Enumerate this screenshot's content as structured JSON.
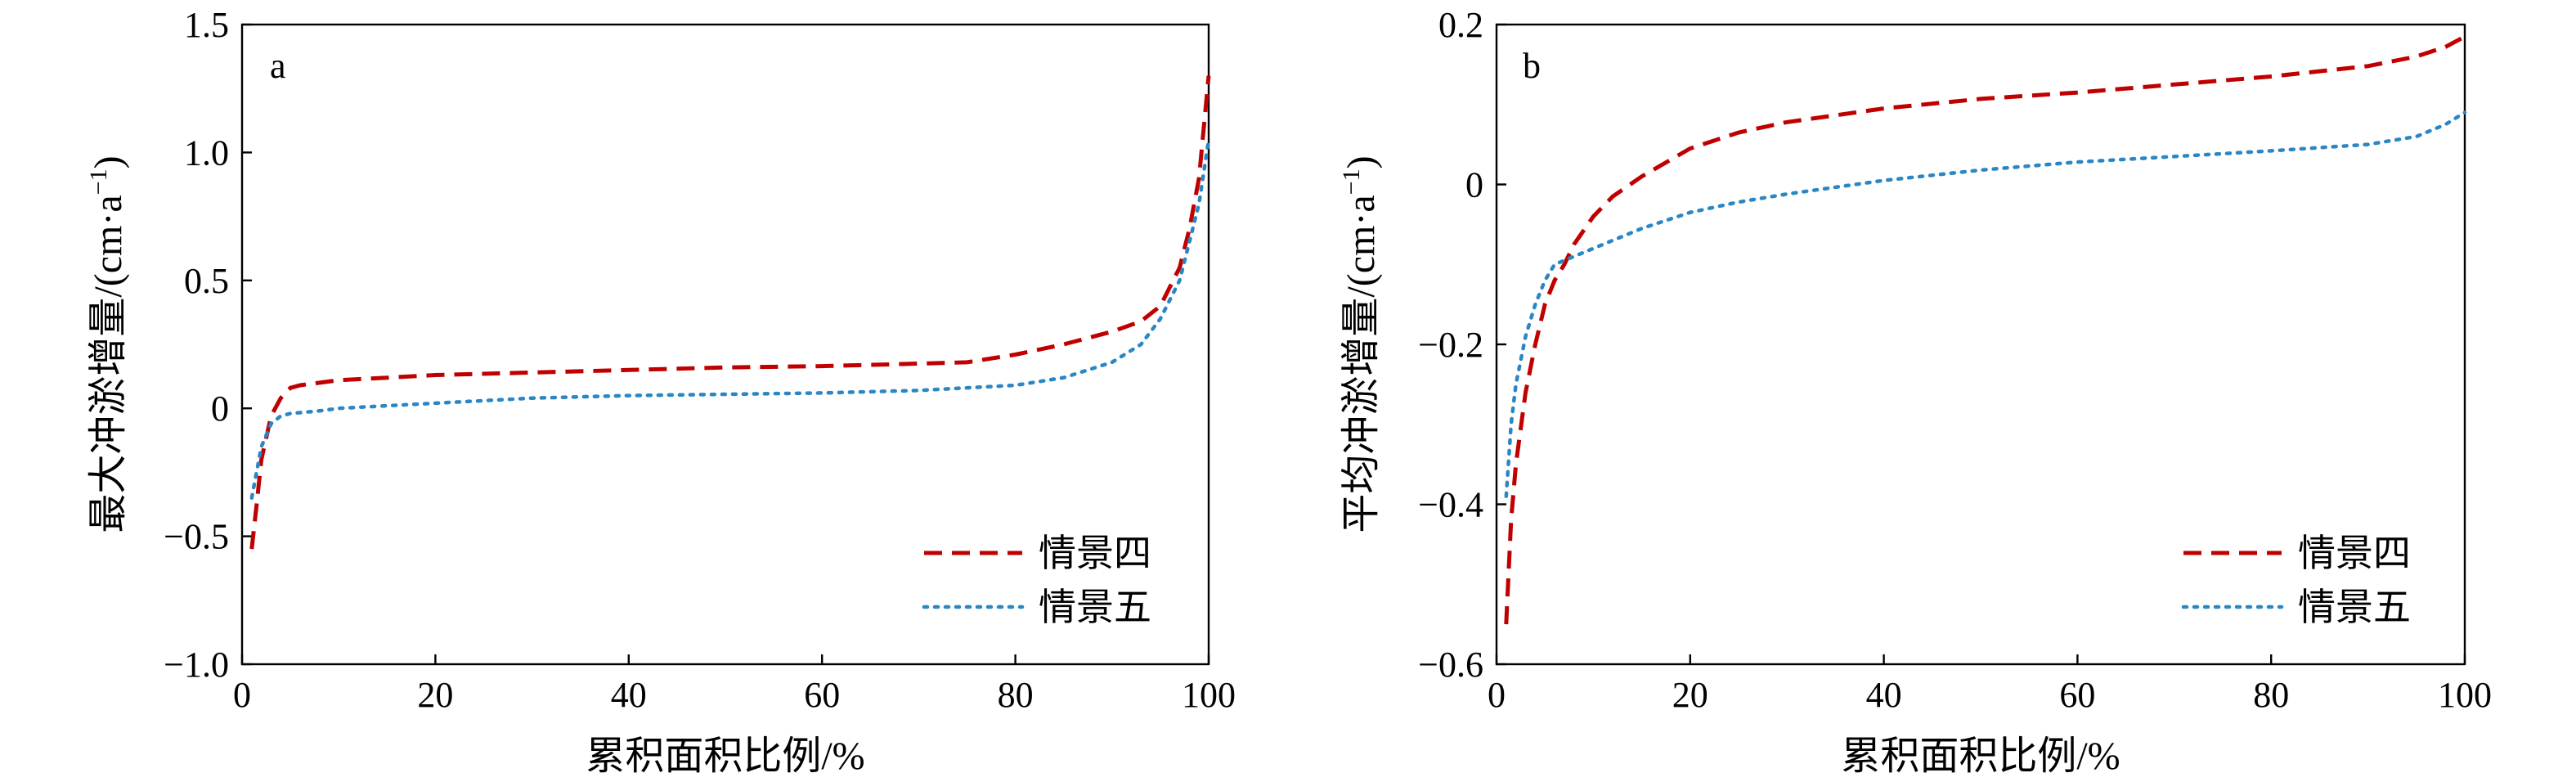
{
  "chart_data": [
    {
      "type": "line",
      "panel": "a",
      "xlabel": "累积面积比例/%",
      "ylabel": "最大冲淤增量/(cm·a",
      "ylabel_sup": "−1",
      "ylabel_close": ")",
      "xlim": [
        0,
        100
      ],
      "ylim": [
        -1.0,
        1.5
      ],
      "xticks": [
        0,
        20,
        40,
        60,
        80,
        100
      ],
      "xtick_labels": [
        "0",
        "20",
        "40",
        "60",
        "80",
        "100"
      ],
      "yticks": [
        -1.0,
        -0.5,
        0,
        0.5,
        1.0,
        1.5
      ],
      "ytick_labels": [
        "−1.0",
        "−0.5",
        "0",
        "0.5",
        "1.0",
        "1.5"
      ],
      "grid": false,
      "legend_position": "bottom-right",
      "series": [
        {
          "name": "情景四",
          "color": "#c00000",
          "dash": "dashed",
          "x": [
            1,
            1.5,
            2,
            3,
            4,
            5,
            6,
            8,
            10,
            15,
            20,
            30,
            40,
            50,
            60,
            70,
            75,
            80,
            85,
            90,
            93,
            95,
            97,
            98,
            99,
            100
          ],
          "y": [
            -0.55,
            -0.38,
            -0.2,
            -0.03,
            0.04,
            0.08,
            0.09,
            0.1,
            0.11,
            0.12,
            0.13,
            0.14,
            0.15,
            0.16,
            0.165,
            0.175,
            0.18,
            0.21,
            0.25,
            0.3,
            0.34,
            0.4,
            0.55,
            0.7,
            0.9,
            1.3
          ]
        },
        {
          "name": "情景五",
          "color": "#2a87c4",
          "dash": "dotted",
          "x": [
            1,
            2,
            3,
            4,
            5,
            8,
            10,
            20,
            30,
            40,
            50,
            60,
            70,
            80,
            85,
            90,
            93,
            95,
            97,
            98,
            99,
            100
          ],
          "y": [
            -0.35,
            -0.15,
            -0.06,
            -0.03,
            -0.02,
            -0.01,
            0.0,
            0.02,
            0.04,
            0.05,
            0.055,
            0.06,
            0.07,
            0.09,
            0.12,
            0.18,
            0.25,
            0.35,
            0.5,
            0.65,
            0.8,
            1.05
          ]
        }
      ]
    },
    {
      "type": "line",
      "panel": "b",
      "xlabel": "累积面积比例/%",
      "ylabel": "平均冲淤增量/(cm·a",
      "ylabel_sup": "−1",
      "ylabel_close": ")",
      "xlim": [
        0,
        100
      ],
      "ylim": [
        -0.6,
        0.2
      ],
      "xticks": [
        0,
        20,
        40,
        60,
        80,
        100
      ],
      "xtick_labels": [
        "0",
        "20",
        "40",
        "60",
        "80",
        "100"
      ],
      "yticks": [
        -0.6,
        -0.4,
        -0.2,
        0,
        0.2
      ],
      "ytick_labels": [
        "−0.6",
        "−0.4",
        "−0.2",
        "0",
        "0.2"
      ],
      "grid": false,
      "legend_position": "bottom-right",
      "series": [
        {
          "name": "情景四",
          "color": "#c00000",
          "dash": "dashed",
          "x": [
            1,
            1.5,
            2,
            3,
            4,
            5,
            6,
            7,
            8,
            10,
            12,
            15,
            20,
            25,
            30,
            40,
            50,
            60,
            70,
            80,
            90,
            95,
            98,
            100
          ],
          "y": [
            -0.55,
            -0.42,
            -0.35,
            -0.26,
            -0.2,
            -0.15,
            -0.12,
            -0.1,
            -0.075,
            -0.04,
            -0.015,
            0.01,
            0.045,
            0.065,
            0.078,
            0.095,
            0.107,
            0.115,
            0.125,
            0.135,
            0.148,
            0.16,
            0.172,
            0.185
          ]
        },
        {
          "name": "情景五",
          "color": "#2a87c4",
          "dash": "dotted",
          "x": [
            1,
            1.5,
            2,
            3,
            4,
            5,
            6,
            7,
            8,
            10,
            12,
            15,
            20,
            25,
            30,
            40,
            50,
            60,
            70,
            80,
            90,
            95,
            98,
            100
          ],
          "y": [
            -0.39,
            -0.3,
            -0.25,
            -0.19,
            -0.15,
            -0.12,
            -0.1,
            -0.095,
            -0.09,
            -0.08,
            -0.07,
            -0.055,
            -0.035,
            -0.022,
            -0.012,
            0.005,
            0.018,
            0.028,
            0.035,
            0.042,
            0.05,
            0.06,
            0.075,
            0.09
          ]
        }
      ]
    }
  ]
}
